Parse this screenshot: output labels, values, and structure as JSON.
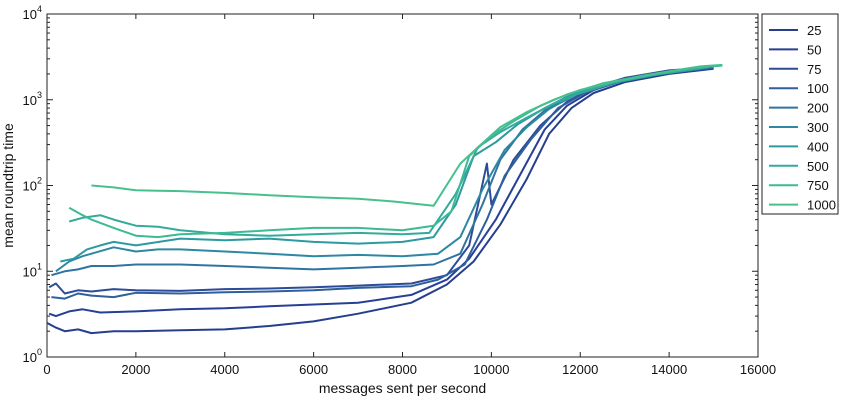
{
  "chart_data": {
    "type": "line",
    "xlabel": "messages sent per second",
    "ylabel": "mean roundtrip time",
    "xlim": [
      0,
      16000
    ],
    "ylim": [
      1,
      10000
    ],
    "yscale": "log",
    "grid": false,
    "legend_position": "outside-right",
    "x_ticks": [
      "0",
      "2000",
      "4000",
      "6000",
      "8000",
      "10000",
      "12000",
      "14000",
      "16000"
    ],
    "y_ticks": [
      {
        "base": "10",
        "exp": "0",
        "value": 1
      },
      {
        "base": "10",
        "exp": "1",
        "value": 10
      },
      {
        "base": "10",
        "exp": "2",
        "value": 100
      },
      {
        "base": "10",
        "exp": "3",
        "value": 1000
      },
      {
        "base": "10",
        "exp": "4",
        "value": 10000
      }
    ],
    "series": [
      {
        "name": "25",
        "color": "#253f8f",
        "points": [
          [
            0,
            2.5
          ],
          [
            200,
            2.2
          ],
          [
            400,
            2.0
          ],
          [
            700,
            2.1
          ],
          [
            1000,
            1.9
          ],
          [
            1500,
            2.0
          ],
          [
            2000,
            2.0
          ],
          [
            3000,
            2.05
          ],
          [
            4000,
            2.1
          ],
          [
            5000,
            2.3
          ],
          [
            6000,
            2.6
          ],
          [
            7000,
            3.2
          ],
          [
            8200,
            4.3
          ],
          [
            9000,
            7
          ],
          [
            9600,
            13
          ],
          [
            10200,
            35
          ],
          [
            10800,
            120
          ],
          [
            11300,
            400
          ],
          [
            11800,
            800
          ],
          [
            12300,
            1200
          ],
          [
            13000,
            1600
          ],
          [
            14000,
            2000
          ],
          [
            15000,
            2300
          ]
        ]
      },
      {
        "name": "50",
        "color": "#273f95",
        "points": [
          [
            50,
            3.2
          ],
          [
            200,
            3.0
          ],
          [
            500,
            3.4
          ],
          [
            800,
            3.6
          ],
          [
            1200,
            3.3
          ],
          [
            2000,
            3.4
          ],
          [
            3000,
            3.6
          ],
          [
            4000,
            3.7
          ],
          [
            5000,
            3.9
          ],
          [
            6000,
            4.1
          ],
          [
            7000,
            4.3
          ],
          [
            8200,
            5.3
          ],
          [
            9000,
            8
          ],
          [
            9500,
            14
          ],
          [
            10100,
            40
          ],
          [
            10700,
            150
          ],
          [
            11200,
            450
          ],
          [
            11700,
            850
          ],
          [
            12300,
            1300
          ],
          [
            13000,
            1700
          ],
          [
            14000,
            2100
          ],
          [
            14800,
            2300
          ]
        ]
      },
      {
        "name": "75",
        "color": "#2c4c98",
        "points": [
          [
            50,
            6.5
          ],
          [
            200,
            7.2
          ],
          [
            400,
            5.5
          ],
          [
            700,
            6.0
          ],
          [
            1000,
            5.8
          ],
          [
            1500,
            6.2
          ],
          [
            2000,
            6.0
          ],
          [
            3000,
            5.9
          ],
          [
            4000,
            6.2
          ],
          [
            5000,
            6.3
          ],
          [
            6000,
            6.5
          ],
          [
            7000,
            6.8
          ],
          [
            8200,
            7.2
          ],
          [
            9000,
            9
          ],
          [
            9500,
            20
          ],
          [
            9900,
            180
          ],
          [
            10000,
            60
          ],
          [
            10500,
            200
          ],
          [
            11100,
            500
          ],
          [
            11700,
            950
          ],
          [
            12300,
            1400
          ],
          [
            13000,
            1800
          ],
          [
            14000,
            2200
          ],
          [
            15000,
            2400
          ]
        ]
      },
      {
        "name": "100",
        "color": "#2e5f9f",
        "points": [
          [
            100,
            5.0
          ],
          [
            400,
            4.8
          ],
          [
            700,
            5.5
          ],
          [
            1000,
            5.2
          ],
          [
            1500,
            5.0
          ],
          [
            2000,
            5.6
          ],
          [
            3000,
            5.5
          ],
          [
            4000,
            5.7
          ],
          [
            5000,
            5.8
          ],
          [
            6000,
            6.0
          ],
          [
            7000,
            6.4
          ],
          [
            8200,
            6.7
          ],
          [
            8800,
            8
          ],
          [
            9400,
            12
          ],
          [
            9900,
            40
          ],
          [
            10300,
            130
          ],
          [
            10900,
            350
          ],
          [
            11500,
            800
          ],
          [
            12100,
            1200
          ],
          [
            12900,
            1650
          ],
          [
            13900,
            2050
          ],
          [
            15000,
            2350
          ]
        ]
      },
      {
        "name": "200",
        "color": "#2f74a0",
        "points": [
          [
            100,
            9
          ],
          [
            400,
            10
          ],
          [
            700,
            10.5
          ],
          [
            1000,
            11.5
          ],
          [
            1500,
            11.5
          ],
          [
            2000,
            12
          ],
          [
            3000,
            12
          ],
          [
            4000,
            11.5
          ],
          [
            5000,
            11
          ],
          [
            6000,
            10.5
          ],
          [
            7000,
            11
          ],
          [
            8000,
            11.5
          ],
          [
            8700,
            12
          ],
          [
            9300,
            16
          ],
          [
            9800,
            60
          ],
          [
            10200,
            200
          ],
          [
            10700,
            450
          ],
          [
            11200,
            750
          ],
          [
            11800,
            1100
          ],
          [
            12500,
            1500
          ],
          [
            13500,
            1900
          ],
          [
            14500,
            2250
          ]
        ]
      },
      {
        "name": "300",
        "color": "#2d88a3",
        "points": [
          [
            200,
            10
          ],
          [
            500,
            13
          ],
          [
            800,
            15
          ],
          [
            1000,
            16
          ],
          [
            1500,
            19
          ],
          [
            2000,
            17
          ],
          [
            2500,
            18
          ],
          [
            3000,
            18
          ],
          [
            4000,
            17
          ],
          [
            5000,
            16
          ],
          [
            6000,
            15
          ],
          [
            7000,
            15.5
          ],
          [
            8000,
            15
          ],
          [
            8800,
            16
          ],
          [
            9300,
            25
          ],
          [
            9800,
            90
          ],
          [
            10300,
            260
          ],
          [
            10800,
            480
          ],
          [
            11300,
            780
          ],
          [
            11900,
            1150
          ],
          [
            12700,
            1550
          ],
          [
            13700,
            1950
          ],
          [
            14700,
            2300
          ]
        ]
      },
      {
        "name": "400",
        "color": "#2c9aa0",
        "points": [
          [
            300,
            13
          ],
          [
            600,
            14
          ],
          [
            900,
            18
          ],
          [
            1200,
            20
          ],
          [
            1500,
            22
          ],
          [
            2000,
            20
          ],
          [
            3000,
            24
          ],
          [
            4000,
            23
          ],
          [
            5000,
            24
          ],
          [
            6000,
            22
          ],
          [
            7000,
            21
          ],
          [
            8000,
            22
          ],
          [
            8700,
            25
          ],
          [
            9200,
            60
          ],
          [
            9600,
            220
          ],
          [
            10100,
            320
          ],
          [
            10600,
            520
          ],
          [
            11200,
            800
          ],
          [
            11800,
            1150
          ],
          [
            12600,
            1550
          ],
          [
            13600,
            1950
          ],
          [
            14600,
            2350
          ]
        ]
      },
      {
        "name": "500",
        "color": "#34aa9a",
        "points": [
          [
            500,
            38
          ],
          [
            800,
            42
          ],
          [
            1200,
            45
          ],
          [
            1500,
            40
          ],
          [
            2000,
            34
          ],
          [
            2500,
            33
          ],
          [
            3000,
            30
          ],
          [
            4000,
            27
          ],
          [
            5000,
            26
          ],
          [
            6000,
            27
          ],
          [
            7000,
            28
          ],
          [
            8000,
            27
          ],
          [
            8600,
            28
          ],
          [
            9200,
            80
          ],
          [
            9700,
            280
          ],
          [
            10200,
            420
          ],
          [
            10800,
            620
          ],
          [
            11400,
            900
          ],
          [
            12000,
            1200
          ],
          [
            12800,
            1600
          ],
          [
            13800,
            2000
          ],
          [
            14900,
            2400
          ]
        ]
      },
      {
        "name": "750",
        "color": "#3dba95",
        "points": [
          [
            500,
            55
          ],
          [
            800,
            45
          ],
          [
            1000,
            40
          ],
          [
            1500,
            32
          ],
          [
            2000,
            26
          ],
          [
            2500,
            25
          ],
          [
            3000,
            27
          ],
          [
            4000,
            28
          ],
          [
            5000,
            30
          ],
          [
            6000,
            32
          ],
          [
            7000,
            32
          ],
          [
            8000,
            30
          ],
          [
            8700,
            34
          ],
          [
            9100,
            50
          ],
          [
            9500,
            220
          ],
          [
            10000,
            380
          ],
          [
            10500,
            560
          ],
          [
            11100,
            850
          ],
          [
            11700,
            1150
          ],
          [
            12500,
            1550
          ],
          [
            13500,
            1950
          ],
          [
            14500,
            2350
          ],
          [
            15200,
            2500
          ]
        ]
      },
      {
        "name": "1000",
        "color": "#47c08f",
        "points": [
          [
            1000,
            100
          ],
          [
            1500,
            95
          ],
          [
            2000,
            88
          ],
          [
            2500,
            87
          ],
          [
            3000,
            86
          ],
          [
            4000,
            82
          ],
          [
            5000,
            77
          ],
          [
            6000,
            73
          ],
          [
            7000,
            70
          ],
          [
            7800,
            65
          ],
          [
            8700,
            58
          ],
          [
            9300,
            180
          ],
          [
            9700,
            280
          ],
          [
            10200,
            480
          ],
          [
            10800,
            720
          ],
          [
            11400,
            1000
          ],
          [
            12000,
            1300
          ],
          [
            12800,
            1650
          ],
          [
            13800,
            2050
          ],
          [
            14700,
            2450
          ],
          [
            15200,
            2550
          ]
        ]
      }
    ]
  }
}
